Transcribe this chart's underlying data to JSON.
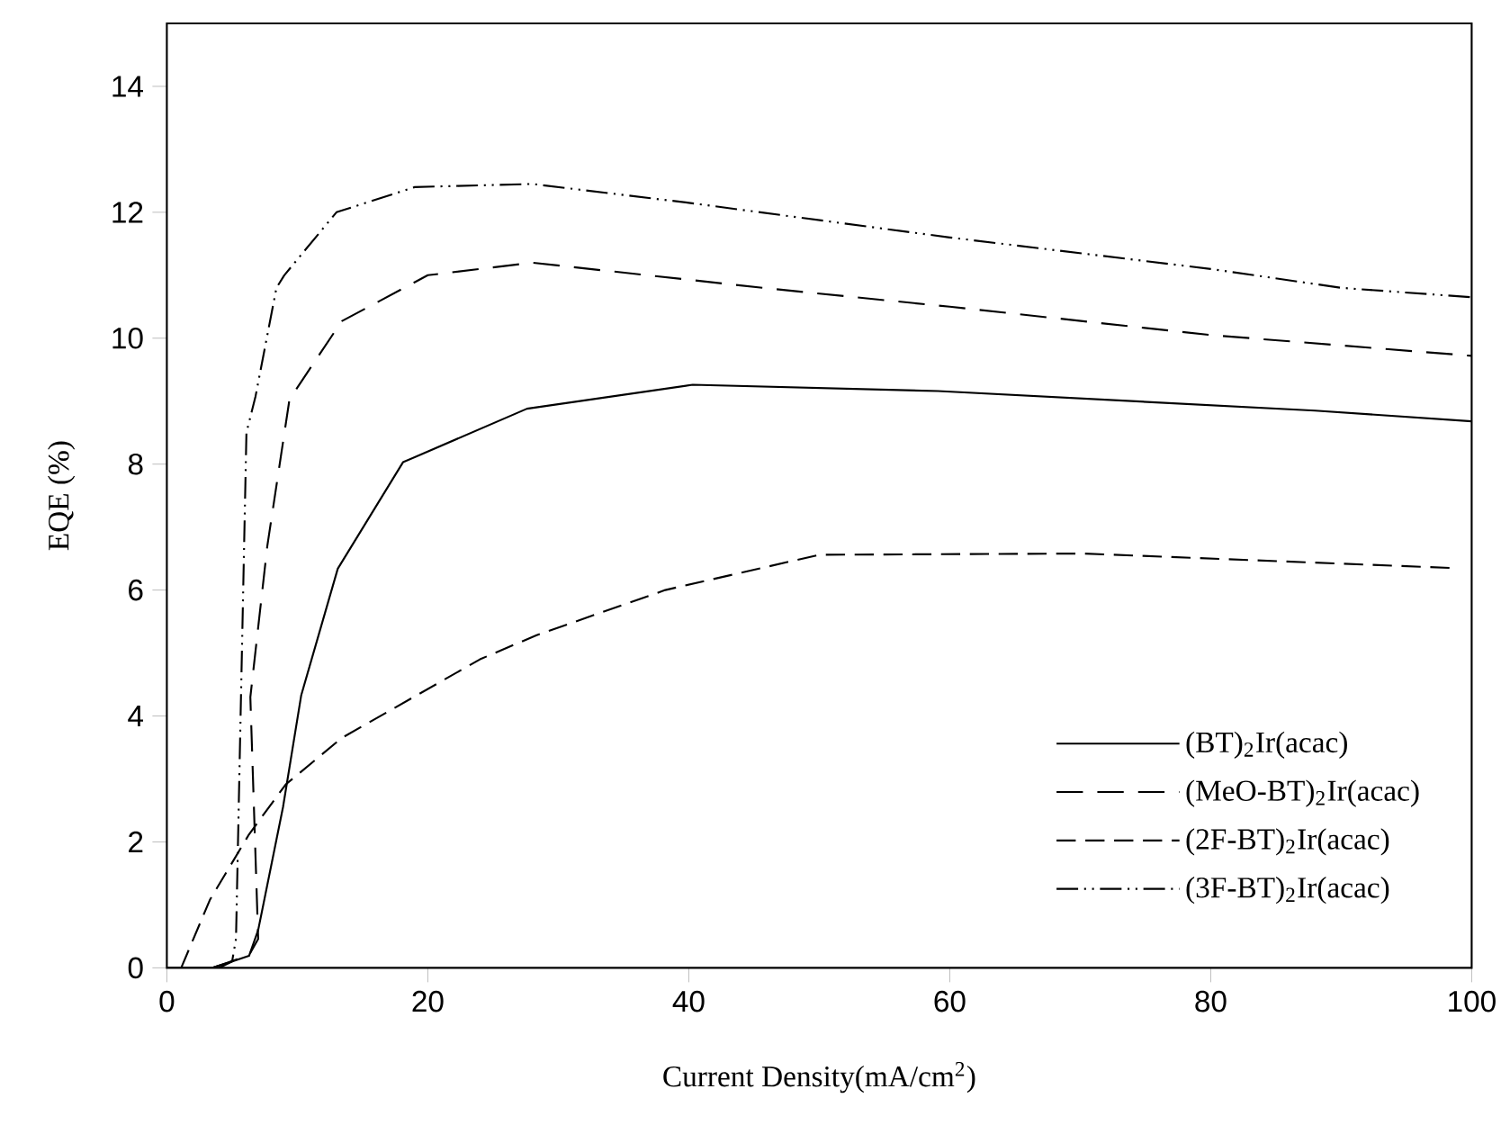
{
  "chart_data": {
    "type": "line",
    "xlabel": "Current Density(mA/cm$^{2}$)",
    "ylabel": "EQE (%)",
    "xlim": [
      0,
      100
    ],
    "ylim": [
      0,
      15
    ],
    "xticks": [
      0,
      20,
      40,
      60,
      80,
      100
    ],
    "yticks": [
      0,
      2,
      4,
      6,
      8,
      10,
      12,
      14
    ],
    "grid": false,
    "legend": "bottom right",
    "marker": "none",
    "series": [
      {
        "name": "(BT)$_{2}$Ir(acac)",
        "color": "#000000",
        "line_style": "solid",
        "x": [
          0,
          3.5,
          6.3,
          7.0,
          8.9,
          10.3,
          13.1,
          18.1,
          27.6,
          40.3,
          59.1,
          88,
          100
        ],
        "values": [
          0,
          0,
          0.19,
          0.6,
          2.55,
          4.33,
          6.34,
          8.03,
          8.88,
          9.26,
          9.16,
          8.85,
          8.68
        ]
      },
      {
        "name": "(MeO-BT)$_{2}$Ir(acac)",
        "color": "#000000",
        "line_style": "dashed",
        "x": [
          3.5,
          6.3,
          7.0,
          6.4,
          7.7,
          9.4,
          13.4,
          20,
          28,
          46.1,
          60,
          80,
          100
        ],
        "values": [
          0,
          0.2,
          0.46,
          4.3,
          6.7,
          9.03,
          10.27,
          11.0,
          11.2,
          10.79,
          10.5,
          10.05,
          9.72
        ]
      },
      {
        "name": "(2F-BT)$_{2}$Ir(acac)",
        "color": "#000000",
        "line_style": "dashed",
        "x": [
          1.1,
          3.3,
          6.3,
          9.1,
          13.4,
          24.0,
          28.3,
          38.2,
          50,
          70.2,
          98.5
        ],
        "values": [
          0,
          1.08,
          2.12,
          2.91,
          3.65,
          4.9,
          5.28,
          6.0,
          6.56,
          6.58,
          6.35
        ]
      },
      {
        "name": "(3F-BT)$_{2}$Ir(acac)",
        "color": "#000000",
        "line_style": "dotted",
        "x": [
          4,
          5,
          5.3,
          6.1,
          6.8,
          8.4,
          9,
          13,
          19,
          28,
          40,
          60,
          80,
          90,
          100
        ],
        "values": [
          0,
          0.1,
          0.46,
          8.5,
          9.08,
          10.8,
          11.0,
          12.0,
          12.4,
          12.45,
          12.15,
          11.6,
          11.1,
          10.8,
          10.65
        ]
      }
    ]
  }
}
